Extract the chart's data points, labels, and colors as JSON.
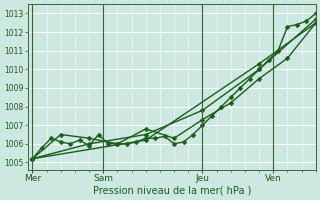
{
  "background_color": "#cce8e0",
  "grid_color": "#b0d4cc",
  "line_color": "#1a5c1a",
  "marker_color": "#1a5c1a",
  "title": "Pression niveau de la mer( hPa )",
  "ylabel_ticks": [
    1005,
    1006,
    1007,
    1008,
    1009,
    1010,
    1011,
    1012,
    1013
  ],
  "ylim": [
    1004.6,
    1013.5
  ],
  "day_labels": [
    "Mer",
    "Sam",
    "Jeu",
    "Ven"
  ],
  "day_positions": [
    0,
    30,
    72,
    102
  ],
  "xlim": [
    -2,
    120
  ],
  "series1_x": [
    0,
    4,
    8,
    12,
    16,
    20,
    24,
    28,
    32,
    36,
    40,
    44,
    48,
    52,
    56,
    60,
    64,
    68,
    72,
    76,
    80,
    84,
    88,
    92,
    96,
    100,
    104,
    108,
    112,
    116,
    120
  ],
  "series1_y": [
    1005.2,
    1005.8,
    1006.3,
    1006.1,
    1006.0,
    1006.2,
    1005.9,
    1006.5,
    1006.0,
    1006.0,
    1006.0,
    1006.1,
    1006.3,
    1006.3,
    1006.4,
    1006.0,
    1006.1,
    1006.5,
    1007.0,
    1007.5,
    1008.0,
    1008.5,
    1009.0,
    1009.5,
    1010.0,
    1010.5,
    1011.0,
    1012.3,
    1012.4,
    1012.6,
    1013.0
  ],
  "series2_x": [
    0,
    12,
    24,
    36,
    48,
    60,
    72,
    84,
    96,
    108,
    120
  ],
  "series2_y": [
    1005.2,
    1006.5,
    1006.3,
    1006.0,
    1006.8,
    1006.3,
    1007.3,
    1008.2,
    1009.5,
    1010.6,
    1012.5
  ],
  "series3_x": [
    0,
    24,
    48,
    72,
    96,
    120
  ],
  "series3_y": [
    1005.2,
    1006.0,
    1006.5,
    1007.8,
    1010.0,
    1012.7
  ],
  "series4_x": [
    0,
    48,
    96,
    120
  ],
  "series4_y": [
    1005.2,
    1006.2,
    1010.3,
    1012.5
  ],
  "marker_size": 2.5,
  "linewidth": 1.0,
  "vline_color": "#336633",
  "spine_color": "#336633",
  "tick_color": "#1a5c1a",
  "xlabel_fontsize": 7,
  "ytick_fontsize": 5.5,
  "xtick_fontsize": 6.5,
  "figsize": [
    3.2,
    2.0
  ],
  "dpi": 100
}
